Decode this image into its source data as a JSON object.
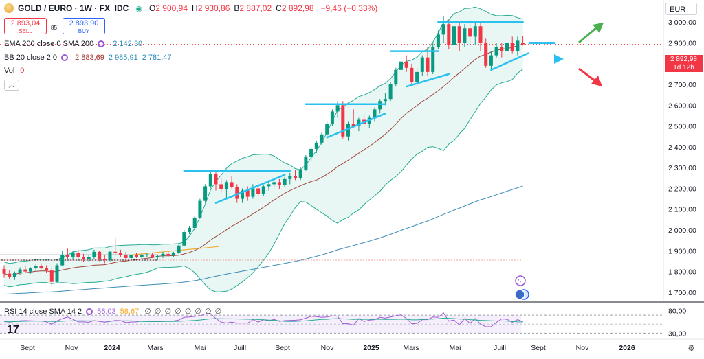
{
  "header": {
    "symbol": "GOLD / EURO · 1W · FX_IDC",
    "ohlc": [
      {
        "k": "O",
        "v": "2 900,94"
      },
      {
        "k": "H",
        "v": "2 930,86"
      },
      {
        "k": "B",
        "v": "2 887,02"
      },
      {
        "k": "C",
        "v": "2 892,98"
      }
    ],
    "change": "−9,46 (−0,33%)"
  },
  "trade": {
    "sell_price": "2 893,04",
    "sell_label": "SELL",
    "spread": "85",
    "buy_price": "2 893,90",
    "buy_label": "BUY"
  },
  "indicators": {
    "ema": {
      "label": "EMA 200 close 0 SMA 200",
      "value": "2 142,30"
    },
    "bb": {
      "label": "BB 20 close 2 0",
      "basis": "2 883,69",
      "upper": "2 985,91",
      "lower": "2 781,47"
    },
    "vol": {
      "label": "Vol",
      "value": "0"
    }
  },
  "currency": "EUR",
  "price_tag": {
    "price": "2 892,98",
    "countdown": "1d 12h"
  },
  "rsi": {
    "label": "RSI 14 close SMA 14 2",
    "rsi": "56,03",
    "sma": "58,67",
    "dots": "∅ ∅ ∅ ∅ ∅ ∅ ∅ ∅",
    "ticks": [
      "80,00",
      "30,00"
    ]
  },
  "colors": {
    "up": "#089981",
    "down": "#f23645",
    "bb_band": "#22ab94",
    "bb_basis": "#a0463c",
    "ema": "#3d8bb8",
    "trend": "#29c1f0",
    "rsi": "#9c58d6",
    "arrow_up": "#4caf50",
    "arrow_down": "#f23645"
  },
  "chart_data": {
    "type": "candlestick",
    "ylim": [
      1660,
      3060
    ],
    "y_ticks": [
      {
        "v": 3000,
        "label": "3 000,00"
      },
      {
        "v": 2900,
        "label": "2 900,00"
      },
      {
        "v": 2800,
        "label": "2 800,00"
      },
      {
        "v": 2700,
        "label": "2 700,00"
      },
      {
        "v": 2600,
        "label": "2 600,00"
      },
      {
        "v": 2500,
        "label": "2 500,00"
      },
      {
        "v": 2400,
        "label": "2 400,00"
      },
      {
        "v": 2300,
        "label": "2 300,00"
      },
      {
        "v": 2200,
        "label": "2 200,00"
      },
      {
        "v": 2100,
        "label": "2 100,00"
      },
      {
        "v": 2000,
        "label": "2 000,00"
      },
      {
        "v": 1900,
        "label": "1 900,00"
      },
      {
        "v": 1800,
        "label": "1 800,00"
      },
      {
        "v": 1700,
        "label": "1 700,00"
      }
    ],
    "x_labels": [
      "Sept",
      "Nov",
      "2024",
      "Mars",
      "Mai",
      "Juill",
      "Sept",
      "Nov",
      "2025",
      "Mars",
      "Mai",
      "Juill",
      "Sept",
      "Nov",
      "2026"
    ],
    "last_close": 2892.98,
    "candles": [
      [
        1812,
        1830,
        1770,
        1790
      ],
      [
        1790,
        1805,
        1765,
        1775
      ],
      [
        1775,
        1800,
        1760,
        1795
      ],
      [
        1795,
        1820,
        1785,
        1810
      ],
      [
        1810,
        1830,
        1795,
        1800
      ],
      [
        1800,
        1820,
        1790,
        1815
      ],
      [
        1815,
        1835,
        1800,
        1825
      ],
      [
        1825,
        1840,
        1810,
        1815
      ],
      [
        1815,
        1830,
        1795,
        1805
      ],
      [
        1805,
        1820,
        1735,
        1750
      ],
      [
        1750,
        1840,
        1745,
        1830
      ],
      [
        1830,
        1900,
        1825,
        1880
      ],
      [
        1880,
        1910,
        1860,
        1870
      ],
      [
        1870,
        1900,
        1855,
        1890
      ],
      [
        1890,
        1905,
        1860,
        1870
      ],
      [
        1870,
        1885,
        1845,
        1860
      ],
      [
        1860,
        1880,
        1845,
        1870
      ],
      [
        1870,
        1905,
        1860,
        1895
      ],
      [
        1895,
        1900,
        1850,
        1860
      ],
      [
        1860,
        1880,
        1840,
        1855
      ],
      [
        1855,
        1900,
        1850,
        1895
      ],
      [
        1895,
        1960,
        1880,
        1890
      ],
      [
        1890,
        1905,
        1870,
        1880
      ],
      [
        1880,
        1895,
        1855,
        1865
      ],
      [
        1865,
        1880,
        1860,
        1878
      ],
      [
        1878,
        1890,
        1865,
        1870
      ],
      [
        1870,
        1885,
        1860,
        1878
      ],
      [
        1878,
        1890,
        1870,
        1882
      ],
      [
        1882,
        1890,
        1865,
        1868
      ],
      [
        1868,
        1880,
        1855,
        1875
      ],
      [
        1875,
        1895,
        1865,
        1885
      ],
      [
        1885,
        1900,
        1870,
        1878
      ],
      [
        1878,
        1895,
        1870,
        1890
      ],
      [
        1890,
        1930,
        1885,
        1925
      ],
      [
        1925,
        2000,
        1920,
        1990
      ],
      [
        1990,
        2020,
        1980,
        2010
      ],
      [
        2010,
        2070,
        2000,
        2060
      ],
      [
        2060,
        2150,
        2055,
        2140
      ],
      [
        2140,
        2220,
        2130,
        2210
      ],
      [
        2210,
        2290,
        2200,
        2270
      ],
      [
        2270,
        2280,
        2190,
        2220
      ],
      [
        2220,
        2250,
        2180,
        2195
      ],
      [
        2195,
        2240,
        2150,
        2230
      ],
      [
        2230,
        2260,
        2200,
        2205
      ],
      [
        2205,
        2220,
        2130,
        2150
      ],
      [
        2150,
        2200,
        2130,
        2190
      ],
      [
        2190,
        2210,
        2140,
        2160
      ],
      [
        2160,
        2220,
        2150,
        2200
      ],
      [
        2200,
        2230,
        2160,
        2175
      ],
      [
        2175,
        2215,
        2165,
        2210
      ],
      [
        2210,
        2240,
        2190,
        2220
      ],
      [
        2220,
        2250,
        2205,
        2230
      ],
      [
        2230,
        2245,
        2195,
        2215
      ],
      [
        2215,
        2255,
        2205,
        2245
      ],
      [
        2245,
        2275,
        2220,
        2260
      ],
      [
        2260,
        2290,
        2240,
        2250
      ],
      [
        2250,
        2300,
        2240,
        2290
      ],
      [
        2290,
        2360,
        2285,
        2350
      ],
      [
        2350,
        2400,
        2330,
        2390
      ],
      [
        2390,
        2430,
        2370,
        2420
      ],
      [
        2420,
        2470,
        2410,
        2460
      ],
      [
        2460,
        2520,
        2450,
        2510
      ],
      [
        2510,
        2580,
        2500,
        2570
      ],
      [
        2570,
        2620,
        2540,
        2600
      ],
      [
        2600,
        2620,
        2440,
        2450
      ],
      [
        2450,
        2520,
        2430,
        2510
      ],
      [
        2510,
        2580,
        2490,
        2500
      ],
      [
        2500,
        2540,
        2475,
        2530
      ],
      [
        2530,
        2560,
        2500,
        2510
      ],
      [
        2510,
        2550,
        2490,
        2540
      ],
      [
        2540,
        2590,
        2520,
        2580
      ],
      [
        2580,
        2630,
        2560,
        2620
      ],
      [
        2620,
        2660,
        2600,
        2630
      ],
      [
        2630,
        2710,
        2620,
        2700
      ],
      [
        2700,
        2780,
        2690,
        2770
      ],
      [
        2770,
        2830,
        2760,
        2810
      ],
      [
        2810,
        2840,
        2760,
        2780
      ],
      [
        2780,
        2800,
        2690,
        2710
      ],
      [
        2710,
        2780,
        2690,
        2760
      ],
      [
        2760,
        2840,
        2740,
        2830
      ],
      [
        2830,
        2880,
        2740,
        2760
      ],
      [
        2760,
        2900,
        2750,
        2880
      ],
      [
        2880,
        2960,
        2870,
        2940
      ],
      [
        2940,
        3030,
        2900,
        2990
      ],
      [
        2990,
        3010,
        2870,
        2890
      ],
      [
        2890,
        3000,
        2800,
        2980
      ],
      [
        2980,
        3000,
        2860,
        2900
      ],
      [
        2900,
        2990,
        2880,
        2970
      ],
      [
        2970,
        3010,
        2900,
        2930
      ],
      [
        2930,
        2995,
        2890,
        2980
      ],
      [
        2980,
        3000,
        2860,
        2900
      ],
      [
        2900,
        2920,
        2780,
        2790
      ],
      [
        2790,
        2860,
        2770,
        2840
      ],
      [
        2840,
        2900,
        2830,
        2880
      ],
      [
        2880,
        2900,
        2830,
        2860
      ],
      [
        2860,
        2910,
        2850,
        2900
      ],
      [
        2900,
        2930,
        2850,
        2860
      ],
      [
        2860,
        2930,
        2840,
        2910
      ],
      [
        2901,
        2931,
        2887,
        2893
      ]
    ]
  }
}
